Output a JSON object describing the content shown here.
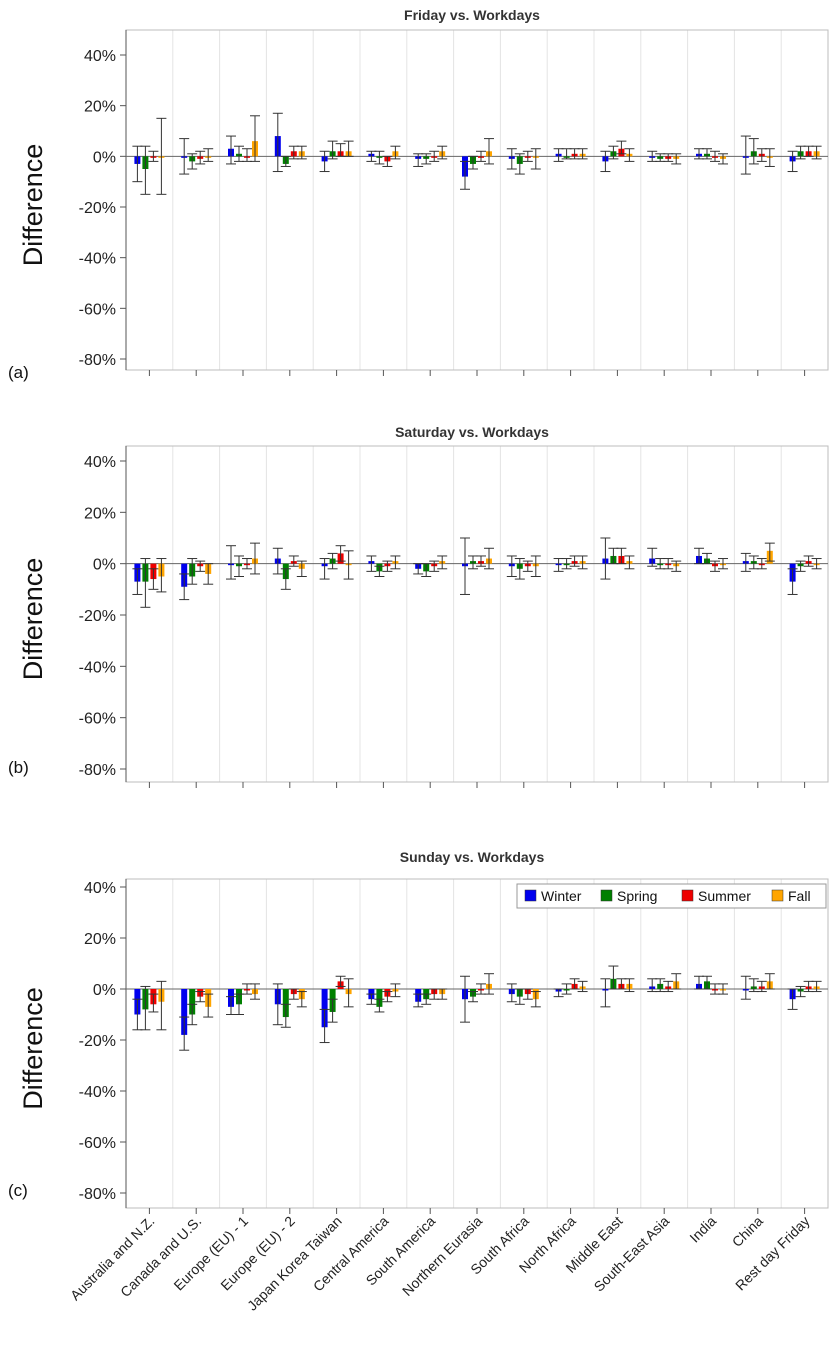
{
  "chart_data": [
    {
      "type": "bar",
      "title": "Friday vs. Workdays",
      "panel_label": "(a)",
      "ylabel": "Difference",
      "yticks": [
        "40%",
        "20%",
        "0%",
        "-20%",
        "-40%",
        "-60%",
        "-80%"
      ],
      "ylim": [
        -80,
        40
      ],
      "grid": "vertical",
      "categories": [
        "Australia and N.Z.",
        "Canada and U.S.",
        "Europe (EU) - 1",
        "Europe (EU) - 2",
        "Japan Korea Taiwan",
        "Central America",
        "South America",
        "Northern Eurasia",
        "South Africa",
        "North Africa",
        "Middle East",
        "South-East Asia",
        "India",
        "China",
        "Rest day Friday"
      ],
      "series": [
        {
          "name": "Winter",
          "color": "#0000ee",
          "values": [
            -3,
            0,
            3,
            8,
            -2,
            1,
            -1,
            -8,
            -1,
            1,
            -2,
            0,
            1,
            0,
            -2
          ],
          "err": [
            [
              -10,
              4
            ],
            [
              -7,
              7
            ],
            [
              -3,
              8
            ],
            [
              -6,
              17
            ],
            [
              -6,
              2
            ],
            [
              -2,
              2
            ],
            [
              -4,
              1
            ],
            [
              -13,
              -2
            ],
            [
              -5,
              3
            ],
            [
              -2,
              3
            ],
            [
              -6,
              2
            ],
            [
              -2,
              2
            ],
            [
              -1,
              3
            ],
            [
              -7,
              8
            ],
            [
              -6,
              2
            ]
          ]
        },
        {
          "name": "Spring",
          "color": "#008000",
          "values": [
            -5,
            -2,
            1,
            -3,
            2,
            0,
            -1,
            -3,
            -3,
            0,
            2,
            -1,
            1,
            2,
            2
          ],
          "err": [
            [
              -15,
              4
            ],
            [
              -5,
              1
            ],
            [
              -2,
              4
            ],
            [
              -4,
              0
            ],
            [
              -1,
              6
            ],
            [
              -3,
              2
            ],
            [
              -3,
              1
            ],
            [
              -5,
              0
            ],
            [
              -7,
              1
            ],
            [
              -1,
              3
            ],
            [
              -1,
              4
            ],
            [
              -2,
              1
            ],
            [
              -1,
              3
            ],
            [
              -3,
              7
            ],
            [
              -1,
              4
            ]
          ]
        },
        {
          "name": "Summer",
          "color": "#ee0000",
          "values": [
            0,
            -1,
            0,
            2,
            2,
            -2,
            0,
            0,
            0,
            1,
            3,
            -1,
            0,
            1,
            2
          ],
          "err": [
            [
              -2,
              2
            ],
            [
              -3,
              2
            ],
            [
              -2,
              3
            ],
            [
              -1,
              4
            ],
            [
              0,
              5
            ],
            [
              -4,
              0
            ],
            [
              -2,
              2
            ],
            [
              -2,
              2
            ],
            [
              -2,
              2
            ],
            [
              -1,
              3
            ],
            [
              1,
              6
            ],
            [
              -2,
              1
            ],
            [
              -2,
              2
            ],
            [
              -2,
              3
            ],
            [
              0,
              4
            ]
          ]
        },
        {
          "name": "Fall",
          "color": "#ffa500",
          "values": [
            0,
            0,
            6,
            2,
            2,
            2,
            2,
            2,
            0,
            1,
            1,
            -1,
            -1,
            0,
            2
          ],
          "err": [
            [
              -15,
              15
            ],
            [
              -2,
              3
            ],
            [
              -2,
              16
            ],
            [
              -1,
              4
            ],
            [
              0,
              6
            ],
            [
              -1,
              4
            ],
            [
              -1,
              4
            ],
            [
              -3,
              7
            ],
            [
              -5,
              3
            ],
            [
              -1,
              3
            ],
            [
              -2,
              3
            ],
            [
              -3,
              1
            ],
            [
              -3,
              1
            ],
            [
              -4,
              3
            ],
            [
              -1,
              4
            ]
          ]
        }
      ]
    },
    {
      "type": "bar",
      "title": "Saturday vs. Workdays",
      "panel_label": "(b)",
      "ylabel": "Difference",
      "yticks": [
        "40%",
        "20%",
        "0%",
        "-20%",
        "-40%",
        "-60%",
        "-80%"
      ],
      "ylim": [
        -80,
        40
      ],
      "grid": "vertical",
      "categories": [
        "Australia and N.Z.",
        "Canada and U.S.",
        "Europe (EU) - 1",
        "Europe (EU) - 2",
        "Japan Korea Taiwan",
        "Central America",
        "South America",
        "Northern Eurasia",
        "South Africa",
        "North Africa",
        "Middle East",
        "South-East Asia",
        "India",
        "China",
        "Rest day Friday"
      ],
      "series": [
        {
          "name": "Winter",
          "color": "#0000ee",
          "values": [
            -7,
            -9,
            0,
            2,
            -1,
            1,
            -2,
            -1,
            -1,
            0,
            2,
            2,
            3,
            1,
            -7
          ],
          "err": [
            [
              -12,
              -2
            ],
            [
              -14,
              -4
            ],
            [
              -6,
              7
            ],
            [
              -4,
              6
            ],
            [
              -6,
              2
            ],
            [
              -3,
              3
            ],
            [
              -4,
              0
            ],
            [
              -12,
              10
            ],
            [
              -5,
              3
            ],
            [
              -3,
              2
            ],
            [
              -6,
              10
            ],
            [
              -1,
              6
            ],
            [
              0,
              6
            ],
            [
              -3,
              4
            ],
            [
              -12,
              -2
            ]
          ]
        },
        {
          "name": "Spring",
          "color": "#008000",
          "values": [
            -7,
            -5,
            -1,
            -6,
            2,
            -3,
            -3,
            1,
            -2,
            0,
            3,
            0,
            2,
            1,
            -1
          ],
          "err": [
            [
              -17,
              2
            ],
            [
              -8,
              2
            ],
            [
              -5,
              3
            ],
            [
              -10,
              -2
            ],
            [
              -2,
              4
            ],
            [
              -5,
              -1
            ],
            [
              -5,
              0
            ],
            [
              -2,
              3
            ],
            [
              -6,
              2
            ],
            [
              -2,
              2
            ],
            [
              0,
              6
            ],
            [
              -2,
              2
            ],
            [
              0,
              4
            ],
            [
              -2,
              3
            ],
            [
              -3,
              1
            ]
          ]
        },
        {
          "name": "Summer",
          "color": "#ee0000",
          "values": [
            -6,
            -1,
            0,
            1,
            4,
            -1,
            -1,
            1,
            -1,
            1,
            3,
            0,
            -1,
            0,
            1
          ],
          "err": [
            [
              -10,
              -2
            ],
            [
              -3,
              1
            ],
            [
              -2,
              2
            ],
            [
              -1,
              3
            ],
            [
              1,
              7
            ],
            [
              -3,
              1
            ],
            [
              -3,
              1
            ],
            [
              -1,
              3
            ],
            [
              -3,
              1
            ],
            [
              -1,
              3
            ],
            [
              0,
              6
            ],
            [
              -2,
              2
            ],
            [
              -3,
              1
            ],
            [
              -2,
              2
            ],
            [
              -1,
              3
            ]
          ]
        },
        {
          "name": "Fall",
          "color": "#ffa500",
          "values": [
            -5,
            -4,
            2,
            -2,
            0,
            1,
            1,
            2,
            -1,
            1,
            1,
            -1,
            0,
            5,
            0
          ],
          "err": [
            [
              -11,
              2
            ],
            [
              -8,
              0
            ],
            [
              -4,
              8
            ],
            [
              -5,
              1
            ],
            [
              -6,
              5
            ],
            [
              -2,
              3
            ],
            [
              -2,
              3
            ],
            [
              -2,
              6
            ],
            [
              -5,
              3
            ],
            [
              -2,
              3
            ],
            [
              -2,
              3
            ],
            [
              -3,
              1
            ],
            [
              -2,
              2
            ],
            [
              1,
              8
            ],
            [
              -2,
              2
            ]
          ]
        }
      ]
    },
    {
      "type": "bar",
      "title": "Sunday vs. Workdays",
      "panel_label": "(c)",
      "ylabel": "Difference",
      "yticks": [
        "40%",
        "20%",
        "0%",
        "-20%",
        "-40%",
        "-60%",
        "-80%"
      ],
      "ylim": [
        -80,
        40
      ],
      "grid": "vertical",
      "legend": "top-right",
      "categories": [
        "Australia and N.Z.",
        "Canada and U.S.",
        "Europe (EU) - 1",
        "Europe (EU) - 2",
        "Japan Korea Taiwan",
        "Central America",
        "South America",
        "Northern Eurasia",
        "South Africa",
        "North Africa",
        "Middle East",
        "South-East Asia",
        "India",
        "China",
        "Rest day Friday"
      ],
      "series": [
        {
          "name": "Winter",
          "color": "#0000ee",
          "values": [
            -10,
            -18,
            -7,
            -6,
            -15,
            -4,
            -5,
            -4,
            -2,
            -1,
            0,
            1,
            2,
            0,
            -4
          ],
          "err": [
            [
              -16,
              -4
            ],
            [
              -24,
              -11
            ],
            [
              -10,
              -3
            ],
            [
              -14,
              2
            ],
            [
              -21,
              -8
            ],
            [
              -6,
              -2
            ],
            [
              -7,
              -2
            ],
            [
              -13,
              5
            ],
            [
              -5,
              2
            ],
            [
              -3,
              0
            ],
            [
              -7,
              4
            ],
            [
              -1,
              4
            ],
            [
              0,
              5
            ],
            [
              -4,
              5
            ],
            [
              -8,
              0
            ]
          ]
        },
        {
          "name": "Spring",
          "color": "#008000",
          "values": [
            -8,
            -10,
            -6,
            -11,
            -9,
            -7,
            -4,
            -3,
            -3,
            0,
            4,
            2,
            3,
            1,
            -1
          ],
          "err": [
            [
              -16,
              1
            ],
            [
              -14,
              -6
            ],
            [
              -10,
              -2
            ],
            [
              -15,
              -6
            ],
            [
              -13,
              -4
            ],
            [
              -9,
              -4
            ],
            [
              -6,
              -2
            ],
            [
              -5,
              -1
            ],
            [
              -6,
              0
            ],
            [
              -2,
              2
            ],
            [
              0,
              9
            ],
            [
              -1,
              4
            ],
            [
              0,
              5
            ],
            [
              -1,
              4
            ],
            [
              -3,
              1
            ]
          ]
        },
        {
          "name": "Summer",
          "color": "#ee0000",
          "values": [
            -6,
            -3,
            0,
            -2,
            3,
            -3,
            -2,
            0,
            -2,
            2,
            2,
            1,
            0,
            1,
            1
          ],
          "err": [
            [
              -9,
              -2
            ],
            [
              -5,
              -1
            ],
            [
              -2,
              2
            ],
            [
              -4,
              0
            ],
            [
              1,
              5
            ],
            [
              -5,
              -1
            ],
            [
              -4,
              0
            ],
            [
              -2,
              2
            ],
            [
              -4,
              0
            ],
            [
              0,
              4
            ],
            [
              0,
              4
            ],
            [
              -1,
              3
            ],
            [
              -2,
              2
            ],
            [
              -1,
              3
            ],
            [
              -1,
              3
            ]
          ]
        },
        {
          "name": "Fall",
          "color": "#ffa500",
          "values": [
            -5,
            -7,
            -2,
            -4,
            -2,
            -1,
            -2,
            2,
            -4,
            1,
            2,
            3,
            0,
            3,
            1
          ],
          "err": [
            [
              -16,
              3
            ],
            [
              -11,
              -2
            ],
            [
              -4,
              2
            ],
            [
              -7,
              -1
            ],
            [
              -7,
              4
            ],
            [
              -3,
              2
            ],
            [
              -4,
              0
            ],
            [
              -2,
              6
            ],
            [
              -7,
              -1
            ],
            [
              -1,
              3
            ],
            [
              -1,
              4
            ],
            [
              0,
              6
            ],
            [
              -2,
              2
            ],
            [
              0,
              6
            ],
            [
              -1,
              3
            ]
          ]
        }
      ]
    }
  ]
}
